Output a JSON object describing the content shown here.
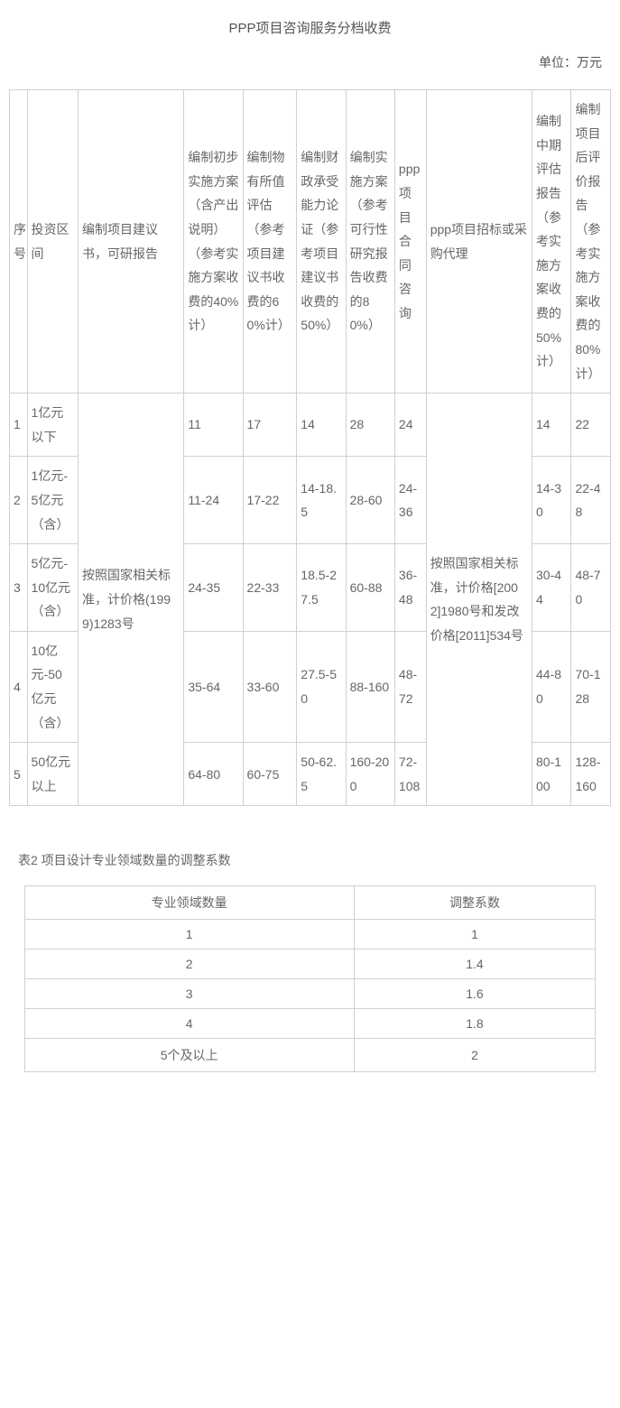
{
  "title": "PPP项目咨询服务分档收费",
  "unit": "单位：万元",
  "mainTable": {
    "headers": [
      "序号",
      "投资区间",
      "编制项目建议书，可研报告",
      "编制初步实施方案（含产出说明）（参考实施方案收费的40%计）",
      "编制物有所值评估（参考项目建议书收费的60%计）",
      "编制财政承受能力论证（参考项目建议书收费的50%）",
      "编制实施方案（参考可行性研究报告收费的80%）",
      "ppp项目合同咨询",
      "ppp项目招标或采购代理",
      "编制中期评估报告（参考实施方案收费的50%计）",
      "编制项目后评价报告（参考实施方案收费的80%计）"
    ],
    "mergedCol3": "按照国家相关标准，计价格(1999)1283号",
    "mergedCol9": "按照国家相关标准，计价格[2002]1980号和发改价格[2011]534号",
    "rows": [
      {
        "idx": "1",
        "range": "1亿元以下",
        "c4": "11",
        "c5": "17",
        "c6": "14",
        "c7": "28",
        "c8": "24",
        "c10": "14",
        "c11": "22"
      },
      {
        "idx": "2",
        "range": "1亿元-5亿元（含）",
        "c4": "11-24",
        "c5": "17-22",
        "c6": "14-18.5",
        "c7": "28-60",
        "c8": "24-36",
        "c10": "14-30",
        "c11": "22-48"
      },
      {
        "idx": "3",
        "range": "5亿元-10亿元（含）",
        "c4": "24-35",
        "c5": "22-33",
        "c6": "18.5-27.5",
        "c7": "60-88",
        "c8": "36-48",
        "c10": "30-44",
        "c11": "48-70"
      },
      {
        "idx": "4",
        "range": "10亿元-50亿元（含）",
        "c4": "35-64",
        "c5": "33-60",
        "c6": "27.5-50",
        "c7": "88-160",
        "c8": "48-72",
        "c10": "44-80",
        "c11": "70-128"
      },
      {
        "idx": "5",
        "range": "50亿元以上",
        "c4": "64-80",
        "c5": "60-75",
        "c6": "50-62.5",
        "c7": "160-200",
        "c8": "72-108",
        "c10": "80-100",
        "c11": "128-160"
      }
    ]
  },
  "section2Title": "表2 项目设计专业领域数量的调整系数",
  "adjTable": {
    "headers": [
      "专业领域数量",
      "调整系数"
    ],
    "rows": [
      [
        "1",
        "1"
      ],
      [
        "2",
        "1.4"
      ],
      [
        "3",
        "1.6"
      ],
      [
        "4",
        "1.8"
      ],
      [
        "5个及以上",
        "2"
      ]
    ]
  }
}
